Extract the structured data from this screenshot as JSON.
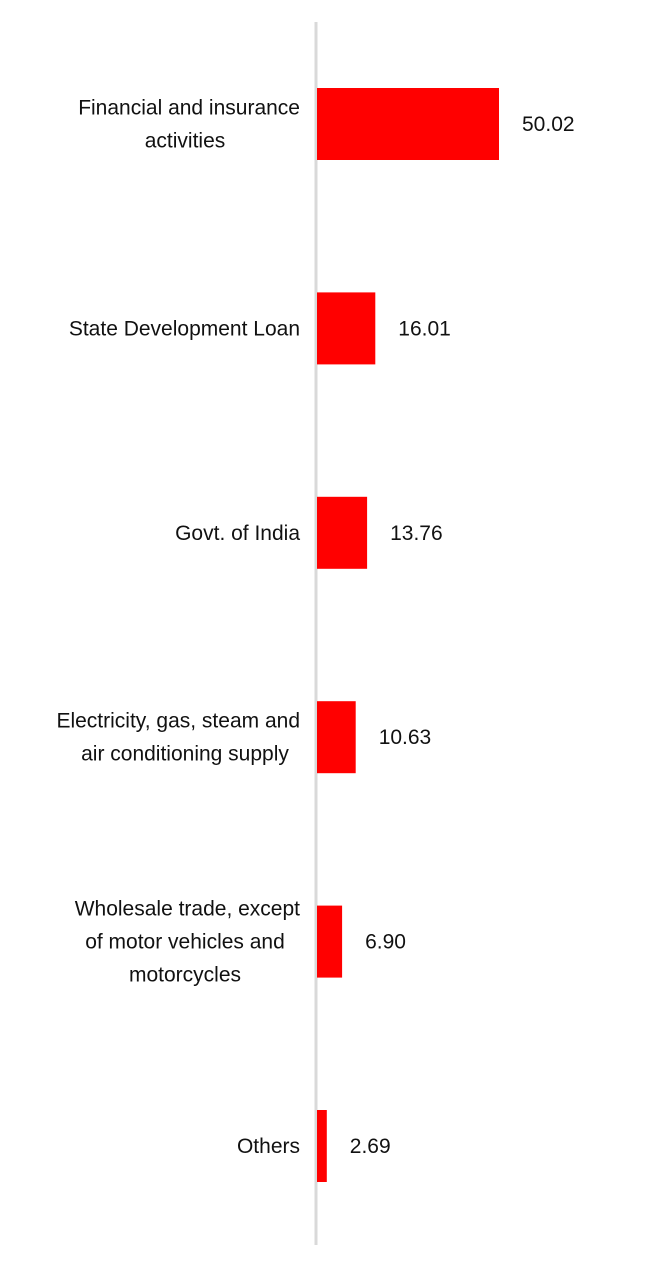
{
  "chart_data": {
    "type": "bar",
    "orientation": "horizontal",
    "categories": [
      "Financial and insurance activities",
      "State Development Loan",
      "Govt. of India",
      "Electricity, gas, steam and air conditioning supply",
      "Wholesale trade, except of motor vehicles and motorcycles",
      "Others"
    ],
    "category_lines": [
      [
        "Financial and insurance",
        "activities"
      ],
      [
        "State Development Loan"
      ],
      [
        "Govt. of India"
      ],
      [
        "Electricity, gas, steam and",
        "air conditioning supply"
      ],
      [
        "Wholesale trade, except",
        "of motor vehicles and",
        "motorcycles"
      ],
      [
        "Others"
      ]
    ],
    "values": [
      50.02,
      16.01,
      13.76,
      10.63,
      6.9,
      2.69
    ],
    "value_labels": [
      "50.02",
      "16.01",
      "13.76",
      "10.63",
      "6.90",
      "2.69"
    ],
    "xlim": [
      0,
      50.02
    ],
    "grid": false,
    "bar_color": "#ff0000",
    "axis_color": "#d9d9d9"
  }
}
